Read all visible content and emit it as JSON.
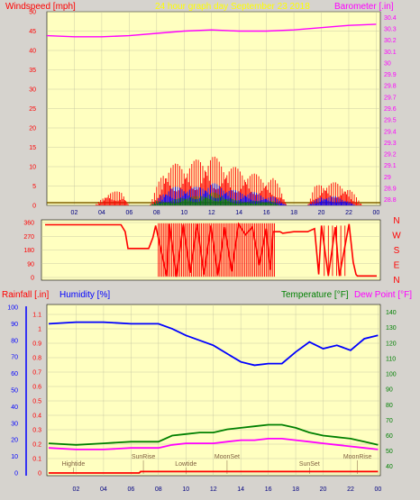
{
  "header": {
    "left_title": "Windspeed [mph]",
    "center_title": "24 hour graph day   September 23 2018",
    "right_title": "Barometer [.in]"
  },
  "colors": {
    "plot_bg": "#ffffc0",
    "frame_bg": "#d6d3ce",
    "wind_high": "#ff0000",
    "wind_avg": "#0000ff",
    "wind_low": "#008000",
    "barometer": "#ff00ff",
    "direction": "#ff0000",
    "humidity": "#0000ff",
    "temperature": "#008000",
    "dew_point": "#ff00ff",
    "rain": "#ff0000",
    "title_gold": "#ffff00"
  },
  "chart_data": [
    {
      "type": "line",
      "name": "wind-barometer",
      "title": "24 hour graph day   September 23 2018",
      "ylabel": "Windspeed [mph]",
      "y2label": "Barometer [.in]",
      "x_ticks": [
        "02",
        "04",
        "06",
        "08",
        "10",
        "12",
        "14",
        "16",
        "18",
        "20",
        "22",
        "00"
      ],
      "y_ticks": [
        0,
        5,
        10,
        15,
        20,
        25,
        30,
        35,
        40,
        45,
        50
      ],
      "ylim": [
        0,
        50
      ],
      "y2_ticks": [
        "28.8",
        "28.9",
        "29",
        "29.1",
        "29.2",
        "29.3",
        "29.4",
        "29.5",
        "29.6",
        "29.7",
        "29.8",
        "29.9",
        "30",
        "30.1",
        "30.2",
        "30.3",
        "30.4"
      ],
      "y2lim": [
        28.75,
        30.45
      ],
      "grid": true,
      "series": [
        {
          "name": "Barometer",
          "axis": "right",
          "x": [
            0,
            2,
            4,
            6,
            8,
            10,
            12,
            14,
            16,
            18,
            20,
            22,
            24
          ],
          "values": [
            30.24,
            30.23,
            30.23,
            30.24,
            30.26,
            30.28,
            30.29,
            30.28,
            30.28,
            30.29,
            30.31,
            30.33,
            30.34
          ]
        },
        {
          "name": "Wind gust",
          "axis": "left",
          "x": [
            0,
            3.5,
            4.5,
            5.5,
            6,
            7.5,
            8,
            8.5,
            9,
            10,
            11,
            12,
            13,
            14,
            15,
            16,
            16.5,
            17,
            17.5,
            18,
            19,
            19.5,
            20,
            21,
            22,
            23,
            24
          ],
          "values": [
            0,
            0,
            3,
            3,
            0,
            0,
            4,
            8,
            9,
            9,
            10,
            11,
            9,
            8,
            7,
            6,
            6,
            4,
            0,
            0,
            0,
            4,
            5,
            5,
            4,
            0,
            0
          ]
        },
        {
          "name": "Wind average",
          "axis": "left",
          "x": [
            0,
            7.5,
            8,
            8.5,
            9,
            10,
            11,
            12,
            13,
            14,
            15,
            16,
            16.5,
            17,
            17.5,
            18,
            19,
            19.5,
            20,
            21,
            22,
            22.5,
            24
          ],
          "values": [
            0,
            0,
            1,
            3,
            4,
            4,
            4,
            5,
            4,
            3,
            3,
            2,
            2,
            1,
            0,
            0,
            0,
            1,
            2,
            2,
            1,
            0,
            0
          ]
        },
        {
          "name": "Wind low",
          "axis": "left",
          "x": [
            0,
            7.5,
            8,
            9,
            10,
            11,
            12,
            13,
            14,
            15,
            16,
            16.5,
            17,
            17.5,
            24
          ],
          "values": [
            0,
            0,
            1,
            1,
            2,
            2,
            3,
            2,
            1,
            1,
            1,
            1,
            0,
            0,
            0
          ]
        }
      ]
    },
    {
      "type": "line",
      "name": "wind-direction",
      "y_ticks": [
        0,
        90,
        180,
        270,
        360
      ],
      "ylim": [
        0,
        360
      ],
      "compass_labels": [
        "N",
        "W",
        "S",
        "E",
        "N"
      ],
      "series": [
        {
          "name": "Direction",
          "x": [
            0,
            5.5,
            5.8,
            6,
            7.5,
            7.8,
            8,
            8.8,
            9,
            9.5,
            10,
            10.5,
            11,
            11.5,
            12,
            12.5,
            13,
            13.5,
            14,
            14.5,
            15,
            15.5,
            16,
            16.3,
            16.5,
            17,
            17.2,
            18,
            19,
            19.5,
            19.8,
            20,
            20.5,
            21,
            21.3,
            22,
            22.3,
            22.5,
            22.6,
            24
          ],
          "values": [
            345,
            345,
            300,
            190,
            190,
            260,
            340,
            10,
            350,
            5,
            345,
            30,
            350,
            20,
            340,
            15,
            330,
            40,
            350,
            280,
            330,
            80,
            320,
            50,
            300,
            300,
            290,
            300,
            300,
            320,
            20,
            340,
            10,
            330,
            10,
            350,
            100,
            20,
            10,
            10
          ]
        }
      ]
    },
    {
      "type": "line",
      "name": "humidity-temperature",
      "header_labels": {
        "rainfall": "Rainfall [.in]",
        "humidity": "Humidity [%]",
        "temperature": "Temperature [°F]",
        "dew_point": "Dew Point [°F]"
      },
      "x_ticks": [
        "02",
        "04",
        "06",
        "08",
        "10",
        "12",
        "14",
        "16",
        "18",
        "20",
        "22",
        "00"
      ],
      "y_ticks_left_outer": [
        0,
        10,
        20,
        30,
        40,
        50,
        60,
        70,
        80,
        90,
        100
      ],
      "y_ticks_left_inner": [
        "0",
        "0.1",
        "0.2",
        "0.3",
        "0.4",
        "0.5",
        "0.6",
        "0.7",
        "0.8",
        "0.9",
        "1",
        "1.1"
      ],
      "y_ticks_right": [
        40,
        50,
        60,
        70,
        80,
        90,
        100,
        110,
        120,
        130,
        140
      ],
      "ylim_humidity": [
        0,
        100
      ],
      "ylim_rain": [
        0,
        1.15
      ],
      "ylim_temp": [
        34,
        145
      ],
      "annotations": [
        {
          "text": "Hightide",
          "x": 1.8
        },
        {
          "text": "SunRise",
          "x": 6.9
        },
        {
          "text": "Lowtide",
          "x": 10.0
        },
        {
          "text": "MoonSet",
          "x": 13.0
        },
        {
          "text": "SunSet",
          "x": 19.0
        },
        {
          "text": "MoonRise",
          "x": 22.5
        }
      ],
      "series": [
        {
          "name": "Humidity",
          "axis": "humidity",
          "x": [
            0,
            2,
            4,
            6,
            8,
            9,
            10,
            11,
            12,
            13,
            14,
            15,
            16,
            17,
            18,
            19,
            20,
            21,
            22,
            23,
            24
          ],
          "values": [
            90,
            91,
            91,
            90,
            90,
            87,
            83,
            80,
            77,
            72,
            67,
            65,
            66,
            66,
            73,
            79,
            75,
            77,
            74,
            81,
            83
          ]
        },
        {
          "name": "Temperature",
          "axis": "temp",
          "x": [
            0,
            2,
            4,
            6,
            8,
            9,
            10,
            11,
            12,
            13,
            14,
            15,
            16,
            17,
            18,
            19,
            20,
            21,
            22,
            23,
            24
          ],
          "values": [
            55,
            54,
            55,
            56,
            56,
            60,
            61,
            62,
            62,
            64,
            65,
            66,
            67,
            67,
            65,
            62,
            60,
            59,
            58,
            56,
            54
          ]
        },
        {
          "name": "Dew Point",
          "axis": "temp",
          "x": [
            0,
            2,
            4,
            6,
            8,
            9,
            10,
            11,
            12,
            13,
            14,
            15,
            16,
            17,
            18,
            19,
            20,
            21,
            22,
            23,
            24
          ],
          "values": [
            52,
            51,
            51,
            52,
            52,
            54,
            55,
            55,
            55,
            56,
            57,
            57,
            58,
            58,
            57,
            56,
            55,
            54,
            53,
            52,
            51
          ]
        },
        {
          "name": "Rainfall",
          "axis": "rain",
          "x": [
            0,
            6.6,
            6.7,
            24
          ],
          "values": [
            0,
            0,
            0.01,
            0.01
          ]
        }
      ]
    }
  ]
}
